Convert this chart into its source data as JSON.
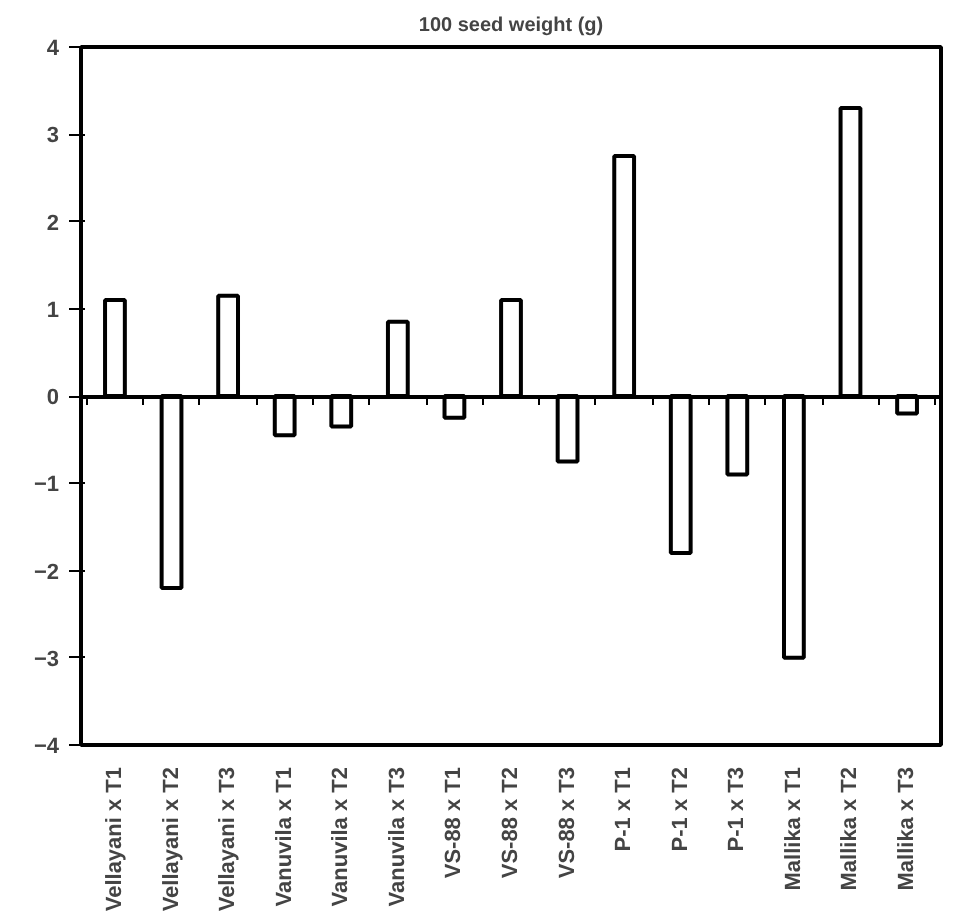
{
  "chart_data": {
    "type": "bar",
    "title": "100 seed weight (g)",
    "categories": [
      "Vellayani x T1",
      "Vellayani x T2",
      "Vellayani x T3",
      "Vanuvila x T1",
      "Vanuvila x T2",
      "Vanuvila x T3",
      "VS-88 x T1",
      "VS-88 x T2",
      "VS-88 x T3",
      "P-1 x T1",
      "P-1 x T2",
      "P-1 x T3",
      "Mallika x T1",
      "Mallika x T2",
      "Mallika x T3"
    ],
    "values": [
      1.1,
      -2.2,
      1.15,
      -0.45,
      -0.35,
      0.85,
      -0.25,
      1.1,
      -0.75,
      2.75,
      -1.8,
      -0.9,
      -3.0,
      3.3,
      -0.2
    ],
    "color": "#ffffff",
    "ylim": [
      -4,
      4
    ],
    "yticks": [
      -4,
      -3,
      -2,
      -1,
      0,
      1,
      2,
      3,
      4
    ]
  }
}
